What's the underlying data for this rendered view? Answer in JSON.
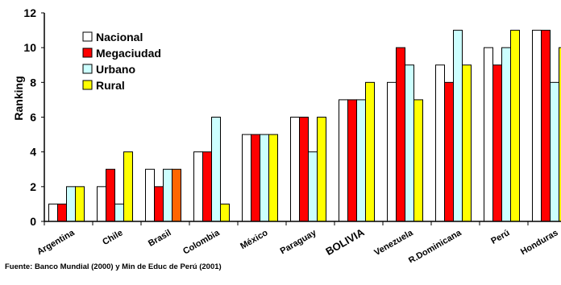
{
  "chart_data": {
    "type": "bar",
    "ylabel": "Ranking",
    "ylim": [
      0,
      12
    ],
    "yticks": [
      0,
      2,
      4,
      6,
      8,
      10,
      12
    ],
    "categories": [
      "Argentina",
      "Chile",
      "Brasil",
      "Colombia",
      "México",
      "Paraguay",
      "BOLIVIA",
      "Venezuela",
      "R.Dominicana",
      "Perú",
      "Honduras"
    ],
    "highlight_category": "BOLIVIA",
    "series": [
      {
        "name": "Nacional",
        "color": "#ffffff",
        "values": [
          1,
          2,
          3,
          4,
          5,
          6,
          7,
          8,
          9,
          10,
          11
        ]
      },
      {
        "name": "Megaciudad",
        "color": "#ff0000",
        "values": [
          1,
          3,
          2,
          4,
          5,
          6,
          7,
          10,
          8,
          9,
          11
        ]
      },
      {
        "name": "Urbano",
        "color": "#ccffff",
        "values": [
          2,
          1,
          3,
          6,
          5,
          4,
          7,
          9,
          11,
          10,
          8
        ]
      },
      {
        "name": "Rural",
        "color": "#ffff00",
        "values": [
          2,
          4,
          3,
          1,
          5,
          6,
          8,
          7,
          9,
          11,
          10
        ]
      }
    ],
    "bar_color_overrides": [
      {
        "series": "Rural",
        "category": "Brasil",
        "color": "#ff6600"
      }
    ],
    "legend_position": "top-left",
    "grid": false
  },
  "source_note": "Fuente: Banco Mundial (2000) y Min de Educ de Perú (2001)"
}
